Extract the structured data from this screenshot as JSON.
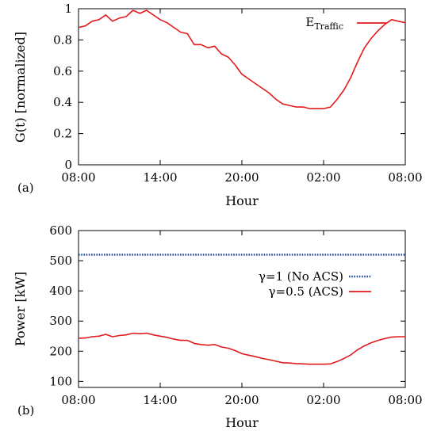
{
  "chart_data": [
    {
      "type": "line",
      "panel_label": "(a)",
      "xlabel": "Hour",
      "ylabel": "G(t) [normalized]",
      "x_ticks": [
        "08:00",
        "14:00",
        "20:00",
        "02:00",
        "08:00"
      ],
      "y_ticks": [
        "0",
        "0.2",
        "0.4",
        "0.6",
        "0.8",
        "1"
      ],
      "xlim": [
        0,
        24
      ],
      "ylim": [
        0,
        1
      ],
      "grid": false,
      "legend_position": "top-right",
      "series": [
        {
          "name": "E",
          "name_subscript": "Traffic",
          "color": "#e31a1c",
          "dash": "solid",
          "x": [
            0,
            0.5,
            1,
            1.5,
            2,
            2.5,
            3,
            3.5,
            4,
            4.5,
            5,
            5.5,
            6,
            6.5,
            7,
            7.5,
            8,
            8.5,
            9,
            9.5,
            10,
            10.5,
            11,
            11.5,
            12,
            12.5,
            13,
            13.5,
            14,
            14.5,
            15,
            15.5,
            16,
            16.5,
            17,
            17.5,
            18,
            18.5,
            19,
            19.5,
            20,
            20.5,
            21,
            21.5,
            22,
            22.5,
            23,
            23.5,
            24
          ],
          "values": [
            0.88,
            0.89,
            0.92,
            0.93,
            0.96,
            0.92,
            0.94,
            0.95,
            0.99,
            0.97,
            0.99,
            0.96,
            0.93,
            0.91,
            0.88,
            0.85,
            0.84,
            0.77,
            0.77,
            0.75,
            0.76,
            0.71,
            0.69,
            0.64,
            0.58,
            0.55,
            0.52,
            0.49,
            0.46,
            0.42,
            0.39,
            0.38,
            0.37,
            0.37,
            0.36,
            0.36,
            0.36,
            0.37,
            0.42,
            0.48,
            0.56,
            0.66,
            0.75,
            0.81,
            0.86,
            0.9,
            0.93,
            0.92,
            0.91
          ]
        }
      ]
    },
    {
      "type": "line",
      "panel_label": "(b)",
      "xlabel": "Hour",
      "ylabel": "Power [kW]",
      "x_ticks": [
        "08:00",
        "14:00",
        "20:00",
        "02:00",
        "08:00"
      ],
      "y_ticks": [
        "100",
        "200",
        "300",
        "400",
        "500",
        "600"
      ],
      "xlim": [
        0,
        24
      ],
      "ylim": [
        80,
        600
      ],
      "grid": false,
      "legend_position": "middle-right",
      "series": [
        {
          "name": "γ=1 (No ACS)",
          "color": "#1f4e9c",
          "dash": "dotted",
          "x": [
            0,
            24
          ],
          "values": [
            520,
            520
          ]
        },
        {
          "name": "γ=0.5 (ACS)",
          "color": "#e31a1c",
          "dash": "solid",
          "x": [
            0,
            0.5,
            1,
            1.5,
            2,
            2.5,
            3,
            3.5,
            4,
            4.5,
            5,
            5.5,
            6,
            6.5,
            7,
            7.5,
            8,
            8.5,
            9,
            9.5,
            10,
            10.5,
            11,
            11.5,
            12,
            12.5,
            13,
            13.5,
            14,
            14.5,
            15,
            15.5,
            16,
            16.5,
            17,
            17.5,
            18,
            18.5,
            19,
            19.5,
            20,
            20.5,
            21,
            21.5,
            22,
            22.5,
            23,
            23.5,
            24
          ],
          "values": [
            243,
            244,
            248,
            250,
            256,
            248,
            252,
            254,
            260,
            258,
            260,
            254,
            250,
            246,
            240,
            236,
            236,
            226,
            222,
            220,
            222,
            214,
            210,
            202,
            192,
            187,
            182,
            176,
            172,
            167,
            162,
            161,
            159,
            158,
            157,
            157,
            157,
            158,
            166,
            176,
            188,
            205,
            218,
            228,
            236,
            242,
            247,
            248,
            248
          ]
        }
      ]
    }
  ]
}
